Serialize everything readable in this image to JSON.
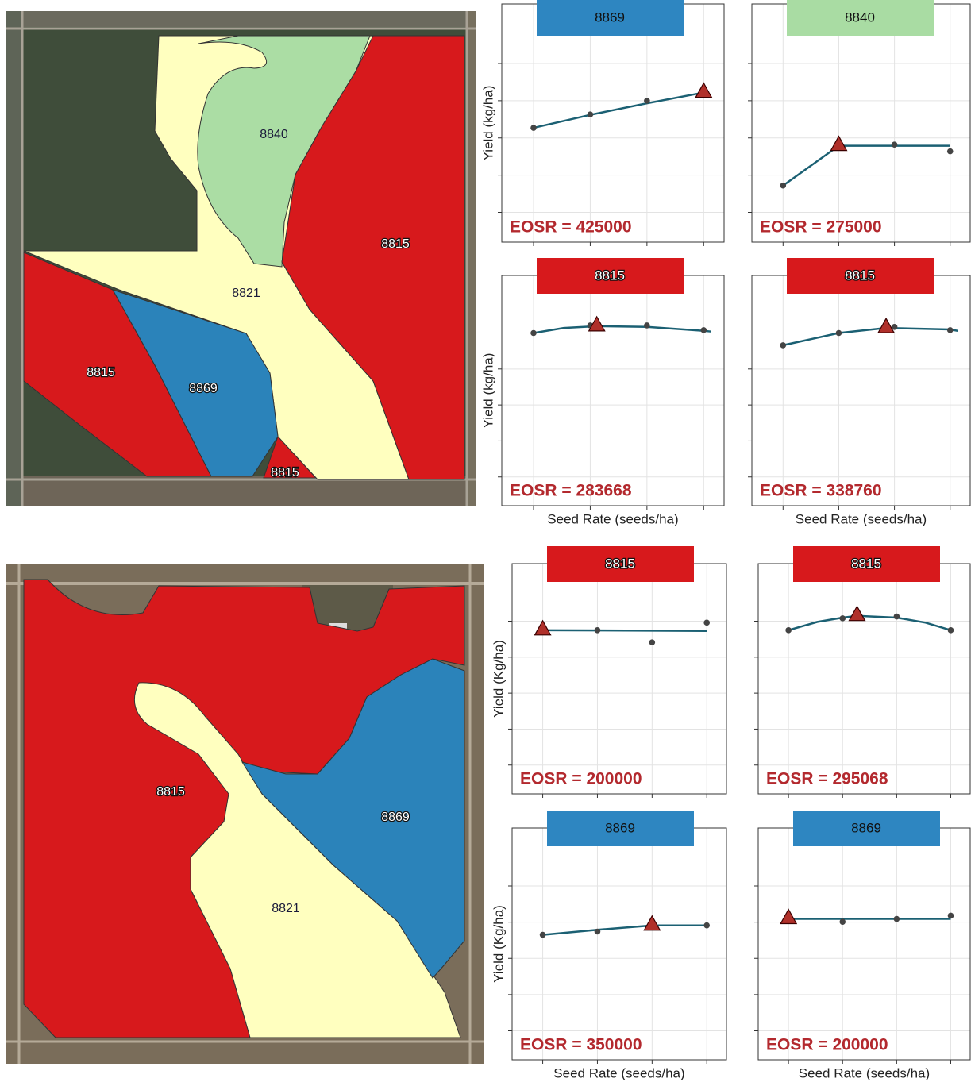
{
  "maps": [
    {
      "zones": [
        {
          "label": "8821",
          "color": "#ffffbf"
        },
        {
          "label": "8840",
          "color": "#abdda4"
        },
        {
          "label": "8815",
          "color": "#d7191c"
        },
        {
          "label": "8815",
          "color": "#d7191c"
        },
        {
          "label": "8869",
          "color": "#2b83ba"
        },
        {
          "label": "8815",
          "color": "#d7191c"
        }
      ]
    },
    {
      "zones": [
        {
          "label": "8815",
          "color": "#d7191c"
        },
        {
          "label": "8821",
          "color": "#ffffbf"
        },
        {
          "label": "8869",
          "color": "#2b83ba"
        }
      ]
    }
  ],
  "chart_data": [
    {
      "type": "line",
      "title": "8869",
      "color": "#2e86c1",
      "ylabel": "Yield (kg/ha)",
      "annotation": "EOSR = 425000",
      "x": [
        200000,
        275000,
        350000,
        425000
      ],
      "values": [
        3.27,
        3.63,
        4.0,
        4.22
      ],
      "fit_x": [
        200000,
        275000,
        350000,
        425000
      ],
      "fit": [
        3.27,
        3.62,
        3.93,
        4.22
      ],
      "eosr": {
        "x": 425000,
        "y": 4.22
      },
      "xlim": [
        158000,
        452000
      ],
      "ylim": [
        0.2,
        6.6
      ],
      "xticks": [
        200000,
        275000,
        350000,
        425000
      ],
      "yticks": [
        1,
        2,
        3,
        4,
        5
      ],
      "grid": true
    },
    {
      "type": "line",
      "title": "8840",
      "color": "#a9dca3",
      "annotation": "EOSR = 275000",
      "x": [
        200000,
        275000,
        350000,
        425000
      ],
      "values": [
        1.72,
        2.79,
        2.82,
        2.64
      ],
      "fit_x": [
        200000,
        275000,
        350000,
        425000
      ],
      "fit": [
        1.72,
        2.79,
        2.79,
        2.79
      ],
      "eosr": {
        "x": 275000,
        "y": 2.79
      },
      "xlim": [
        158000,
        452000
      ],
      "ylim": [
        0.2,
        6.6
      ],
      "xticks": [
        200000,
        275000,
        350000,
        425000
      ],
      "yticks": [
        1,
        2,
        3,
        4,
        5
      ],
      "grid": true
    },
    {
      "type": "line",
      "title": "8815",
      "color": "#d7191c",
      "ylabel": "Yield (kg/ha)",
      "xlabel": "Seed Rate (seeds/ha)",
      "annotation": "EOSR = 283668",
      "x": [
        200000,
        275000,
        350000,
        425000
      ],
      "values": [
        5.0,
        5.21,
        5.21,
        5.08
      ],
      "fit_x": [
        200000,
        240000,
        283668,
        350000,
        425000,
        435000
      ],
      "fit": [
        5.0,
        5.14,
        5.19,
        5.17,
        5.06,
        5.04
      ],
      "eosr": {
        "x": 283668,
        "y": 5.19
      },
      "xlim": [
        158000,
        452000
      ],
      "ylim": [
        0.2,
        6.6
      ],
      "xticks": [
        200000,
        275000,
        350000,
        425000
      ],
      "yticks": [
        1,
        2,
        3,
        4,
        5
      ],
      "grid": true
    },
    {
      "type": "line",
      "title": "8815",
      "color": "#d7191c",
      "xlabel": "Seed Rate (seeds/ha)",
      "annotation": "EOSR = 338760",
      "x": [
        200000,
        275000,
        350000,
        425000
      ],
      "values": [
        4.66,
        5.0,
        5.17,
        5.08
      ],
      "fit_x": [
        200000,
        275000,
        338760,
        425000,
        435000
      ],
      "fit": [
        4.66,
        5.0,
        5.14,
        5.1,
        5.06
      ],
      "eosr": {
        "x": 338760,
        "y": 5.14
      },
      "xlim": [
        158000,
        452000
      ],
      "ylim": [
        0.2,
        6.6
      ],
      "xticks": [
        200000,
        275000,
        350000,
        425000
      ],
      "yticks": [
        1,
        2,
        3,
        4,
        5
      ],
      "grid": true
    },
    {
      "type": "line",
      "title": "8815",
      "color": "#d7191c",
      "ylabel": "Yield (Kg/ha)",
      "annotation": "EOSR = 200000",
      "x": [
        200000,
        275000,
        350000,
        425000
      ],
      "values": [
        4.75,
        4.75,
        4.41,
        4.96
      ],
      "fit_x": [
        200000,
        425000
      ],
      "fit": [
        4.75,
        4.73
      ],
      "eosr": {
        "x": 200000,
        "y": 4.75
      },
      "xlim": [
        158000,
        452000
      ],
      "ylim": [
        0.2,
        6.6
      ],
      "xticks": [
        200000,
        275000,
        350000,
        425000
      ],
      "yticks": [
        1,
        2,
        3,
        4,
        5
      ],
      "grid": true
    },
    {
      "type": "line",
      "title": "8815",
      "color": "#d7191c",
      "annotation": "EOSR = 295068",
      "x": [
        200000,
        275000,
        350000,
        425000
      ],
      "values": [
        4.75,
        5.08,
        5.13,
        4.75
      ],
      "fit_x": [
        200000,
        240000,
        275000,
        295068,
        350000,
        390000,
        425000
      ],
      "fit": [
        4.75,
        4.98,
        5.1,
        5.15,
        5.1,
        4.96,
        4.75
      ],
      "eosr": {
        "x": 295068,
        "y": 5.15
      },
      "xlim": [
        158000,
        452000
      ],
      "ylim": [
        0.2,
        6.6
      ],
      "xticks": [
        200000,
        275000,
        350000,
        425000
      ],
      "yticks": [
        1,
        2,
        3,
        4,
        5
      ],
      "grid": true
    },
    {
      "type": "line",
      "title": "8869",
      "color": "#2e86c1",
      "ylabel": "Yield (Kg/ha)",
      "xlabel": "Seed Rate (seeds/ha)",
      "annotation": "EOSR = 350000",
      "x": [
        200000,
        275000,
        350000,
        425000
      ],
      "values": [
        3.65,
        3.74,
        3.95,
        3.91
      ],
      "fit_x": [
        200000,
        275000,
        350000,
        425000
      ],
      "fit": [
        3.65,
        3.79,
        3.91,
        3.91
      ],
      "eosr": {
        "x": 350000,
        "y": 3.91
      },
      "xlim": [
        158000,
        452000
      ],
      "ylim": [
        0.2,
        6.6
      ],
      "xticks": [
        200000,
        275000,
        350000,
        425000
      ],
      "yticks": [
        1,
        2,
        3,
        4,
        5
      ],
      "grid": true
    },
    {
      "type": "line",
      "title": "8869",
      "color": "#2e86c1",
      "xlabel": "Seed Rate (seeds/ha)",
      "annotation": "EOSR = 200000",
      "x": [
        200000,
        275000,
        350000,
        425000
      ],
      "values": [
        4.09,
        4.01,
        4.09,
        4.18
      ],
      "fit_x": [
        200000,
        425000
      ],
      "fit": [
        4.09,
        4.09
      ],
      "eosr": {
        "x": 200000,
        "y": 4.09
      },
      "xlim": [
        158000,
        452000
      ],
      "ylim": [
        0.2,
        6.6
      ],
      "xticks": [
        200000,
        275000,
        350000,
        425000
      ],
      "yticks": [
        1,
        2,
        3,
        4,
        5
      ],
      "grid": true
    }
  ]
}
